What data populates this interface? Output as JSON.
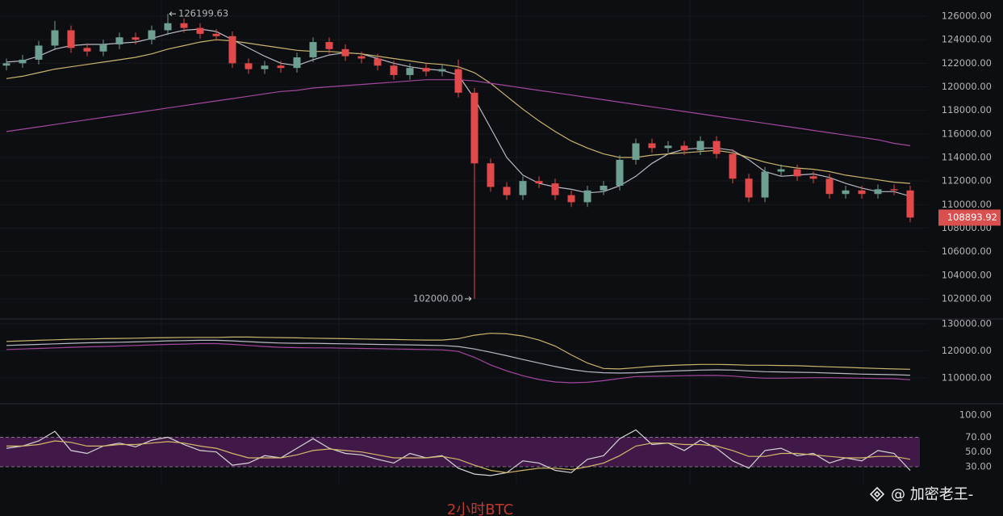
{
  "chart_data": [
    {
      "type": "candlestick",
      "up_color": "#6f9f92",
      "down_color": "#e2494b",
      "grid": true,
      "ylim": [
        100286,
        127371
      ],
      "yticks": [
        {
          "value": 102000,
          "label": "102000.00"
        },
        {
          "value": 104000,
          "label": "104000.00"
        },
        {
          "value": 106000,
          "label": "106000.00"
        },
        {
          "value": 108000,
          "label": "108000.00"
        },
        {
          "value": 110000,
          "label": "110000.00"
        },
        {
          "value": 112000,
          "label": "112000.00"
        },
        {
          "value": 114000,
          "label": "114000.00"
        },
        {
          "value": 116000,
          "label": "116000.00"
        },
        {
          "value": 118000,
          "label": "118000.00"
        },
        {
          "value": 120000,
          "label": "120000.00"
        },
        {
          "value": 122000,
          "label": "122000.00"
        },
        {
          "value": 124000,
          "label": "124000.00"
        },
        {
          "value": 126000,
          "label": "126000.00"
        }
      ],
      "open": [
        121800,
        122000,
        122300,
        123500,
        124800,
        123300,
        123000,
        123600,
        124200,
        124000,
        124800,
        125400,
        125000,
        124500,
        124300,
        122000,
        121500,
        121800,
        121600,
        122500,
        123800,
        123200,
        122600,
        122400,
        121800,
        121000,
        121600,
        121300,
        121500,
        119500,
        113500,
        111500,
        110800,
        112000,
        111800,
        110800,
        110200,
        111200,
        111600,
        113800,
        115200,
        114800,
        115000,
        114600,
        115400,
        114300,
        112200,
        110600,
        112800,
        113000,
        112400,
        112200,
        110900,
        111200,
        110900,
        111300,
        111200
      ],
      "high": [
        122400,
        122700,
        123900,
        125600,
        125200,
        123700,
        124000,
        124600,
        124600,
        125200,
        126199.63,
        125800,
        125400,
        124900,
        124700,
        122400,
        122200,
        122200,
        122900,
        124200,
        124200,
        123600,
        123000,
        122800,
        122200,
        122000,
        122000,
        121900,
        122300,
        119900,
        113900,
        111900,
        112400,
        112400,
        112200,
        111200,
        111600,
        112000,
        114200,
        115600,
        115600,
        115400,
        115400,
        115800,
        115800,
        114700,
        112600,
        113200,
        113400,
        113400,
        112800,
        112600,
        111600,
        111600,
        111700,
        111700,
        111600
      ],
      "low": [
        121400,
        121600,
        121900,
        123100,
        122900,
        122600,
        122600,
        123200,
        123600,
        123600,
        124400,
        124600,
        124100,
        123900,
        121600,
        121100,
        121100,
        121200,
        121200,
        122100,
        122800,
        122200,
        122000,
        121400,
        120600,
        120600,
        120900,
        120900,
        119100,
        102000,
        111100,
        110400,
        110400,
        111400,
        110400,
        109800,
        109800,
        110800,
        111200,
        113400,
        114400,
        114400,
        114200,
        114200,
        113900,
        111800,
        110200,
        110200,
        112400,
        112000,
        111800,
        110500,
        110500,
        110500,
        110500,
        110800,
        108500
      ],
      "close": [
        122000,
        122300,
        123500,
        124800,
        123300,
        123000,
        123600,
        124200,
        124000,
        124800,
        125400,
        125000,
        124500,
        124300,
        122000,
        121500,
        121800,
        121600,
        122500,
        123800,
        123200,
        122600,
        122400,
        121800,
        121000,
        121600,
        121300,
        121500,
        119500,
        113500,
        111500,
        110800,
        112000,
        111800,
        110800,
        110200,
        111200,
        111600,
        113800,
        115200,
        114800,
        115000,
        114600,
        115400,
        114300,
        112200,
        110600,
        112800,
        113000,
        112400,
        112200,
        110900,
        111200,
        110900,
        111300,
        111200,
        108900
      ],
      "series": [
        {
          "color": "#b9bac4",
          "values": [
            122100,
            122200,
            122600,
            123200,
            123500,
            123600,
            123600,
            123700,
            123800,
            124100,
            124500,
            124800,
            124900,
            124700,
            124000,
            123300,
            122600,
            122000,
            121800,
            122300,
            122700,
            122900,
            122800,
            122400,
            122000,
            121700,
            121500,
            121400,
            121000,
            119000,
            116500,
            114000,
            112500,
            111800,
            111500,
            111300,
            111000,
            111100,
            111600,
            112400,
            113500,
            114300,
            114700,
            114800,
            114800,
            114600,
            113800,
            112800,
            112400,
            112500,
            112600,
            112300,
            111800,
            111400,
            111100,
            111100,
            110700
          ]
        },
        {
          "color": "#c9b56c",
          "values": [
            120700,
            120900,
            121200,
            121500,
            121700,
            121900,
            122100,
            122300,
            122500,
            122800,
            123200,
            123500,
            123800,
            124000,
            123900,
            123700,
            123500,
            123300,
            123100,
            123000,
            123000,
            122900,
            122800,
            122600,
            122400,
            122200,
            122000,
            121900,
            121700,
            121200,
            120300,
            119200,
            118100,
            117100,
            116200,
            115400,
            114800,
            114300,
            114000,
            114000,
            114200,
            114300,
            114400,
            114500,
            114600,
            114400,
            114000,
            113600,
            113300,
            113100,
            113000,
            112800,
            112500,
            112300,
            112100,
            111900,
            111800
          ]
        },
        {
          "color": "#a3479f",
          "values": [
            116200,
            116400,
            116600,
            116800,
            117000,
            117200,
            117400,
            117600,
            117800,
            118000,
            118200,
            118400,
            118600,
            118800,
            119000,
            119200,
            119400,
            119600,
            119700,
            119900,
            120000,
            120100,
            120200,
            120300,
            120400,
            120500,
            120600,
            120600,
            120600,
            120500,
            120300,
            120100,
            119900,
            119700,
            119500,
            119300,
            119100,
            118900,
            118700,
            118500,
            118300,
            118100,
            117900,
            117700,
            117500,
            117300,
            117100,
            116900,
            116700,
            116500,
            116300,
            116100,
            115900,
            115700,
            115500,
            115200,
            115000
          ]
        }
      ],
      "high_marker": 126199.63,
      "low_marker": {
        "value": 102000,
        "label": "102000.00"
      },
      "last_price": 108893.92,
      "last_color": "#d9504f"
    },
    {
      "type": "line",
      "grid": true,
      "ylim": [
        100448,
        131791
      ],
      "yticks": [
        {
          "value": 110000,
          "label": "110000.00"
        },
        {
          "value": 120000,
          "label": "120000.00"
        },
        {
          "value": 130000,
          "label": "130000.00"
        }
      ],
      "series": [
        {
          "color": "#c9b56c",
          "values": [
            123500,
            123700,
            123900,
            124100,
            124300,
            124400,
            124500,
            124600,
            124700,
            124800,
            124900,
            125000,
            125000,
            125000,
            125100,
            125100,
            125000,
            124900,
            124800,
            124700,
            124600,
            124500,
            124400,
            124300,
            124200,
            124100,
            124000,
            124000,
            124500,
            125800,
            126500,
            126300,
            125500,
            124000,
            121800,
            118500,
            115500,
            113500,
            113300,
            113800,
            114300,
            114600,
            114800,
            115000,
            115000,
            114900,
            114700,
            114700,
            114600,
            114500,
            114300,
            114100,
            113900,
            113700,
            113500,
            113300,
            113200
          ]
        },
        {
          "color": "#b9bac4",
          "values": [
            122000,
            122200,
            122400,
            122600,
            122800,
            123000,
            123100,
            123200,
            123300,
            123500,
            123700,
            123800,
            123900,
            123900,
            123700,
            123400,
            123100,
            122900,
            122800,
            122800,
            122700,
            122600,
            122500,
            122400,
            122300,
            122200,
            122100,
            122000,
            121600,
            120700,
            119500,
            118200,
            116800,
            115500,
            114200,
            113100,
            112300,
            111900,
            111800,
            111900,
            112200,
            112500,
            112700,
            112900,
            113000,
            112900,
            112600,
            112300,
            112200,
            112100,
            112000,
            111800,
            111600,
            111400,
            111300,
            111200,
            111000
          ]
        },
        {
          "color": "#a3479f",
          "values": [
            120500,
            120700,
            120900,
            121100,
            121300,
            121500,
            121600,
            121800,
            122000,
            122200,
            122400,
            122500,
            122700,
            122700,
            122400,
            122000,
            121600,
            121300,
            121200,
            121100,
            121100,
            121000,
            120900,
            120800,
            120700,
            120600,
            120500,
            120400,
            119800,
            117600,
            114800,
            112600,
            110800,
            109400,
            108500,
            108200,
            108400,
            109000,
            109800,
            110500,
            110600,
            110700,
            110800,
            110900,
            110900,
            110700,
            110200,
            109900,
            109900,
            110000,
            110100,
            110100,
            110000,
            109900,
            109800,
            109700,
            109300
          ]
        }
      ]
    },
    {
      "type": "line",
      "grid": false,
      "ylim": [
        5.9,
        115.3
      ],
      "band": [
        30,
        70
      ],
      "band_color": "#4a1b52",
      "yticks": [
        {
          "value": 30,
          "label": "30.00"
        },
        {
          "value": 50,
          "label": "50.00"
        },
        {
          "value": 70,
          "label": "70.00"
        },
        {
          "value": 100,
          "label": "100.00"
        }
      ],
      "series": [
        {
          "color": "#d6d6d6",
          "values": [
            55,
            58,
            65,
            78,
            52,
            48,
            58,
            62,
            57,
            66,
            70,
            60,
            52,
            50,
            32,
            35,
            45,
            42,
            55,
            68,
            55,
            48,
            46,
            40,
            35,
            48,
            42,
            45,
            28,
            20,
            18,
            22,
            38,
            35,
            25,
            22,
            40,
            45,
            68,
            80,
            60,
            62,
            52,
            66,
            55,
            38,
            28,
            52,
            55,
            45,
            48,
            35,
            42,
            38,
            52,
            48,
            25
          ]
        },
        {
          "color": "#d4b86a",
          "values": [
            58,
            58,
            60,
            65,
            63,
            58,
            58,
            60,
            60,
            62,
            64,
            62,
            58,
            55,
            48,
            42,
            42,
            42,
            46,
            52,
            54,
            52,
            50,
            46,
            42,
            42,
            42,
            44,
            40,
            32,
            25,
            22,
            25,
            28,
            28,
            26,
            30,
            35,
            45,
            58,
            62,
            62,
            60,
            60,
            58,
            52,
            44,
            44,
            48,
            48,
            46,
            44,
            42,
            42,
            44,
            44,
            40
          ]
        }
      ]
    }
  ],
  "caption": "2小时BTC",
  "watermark": "@ 加密老王-"
}
